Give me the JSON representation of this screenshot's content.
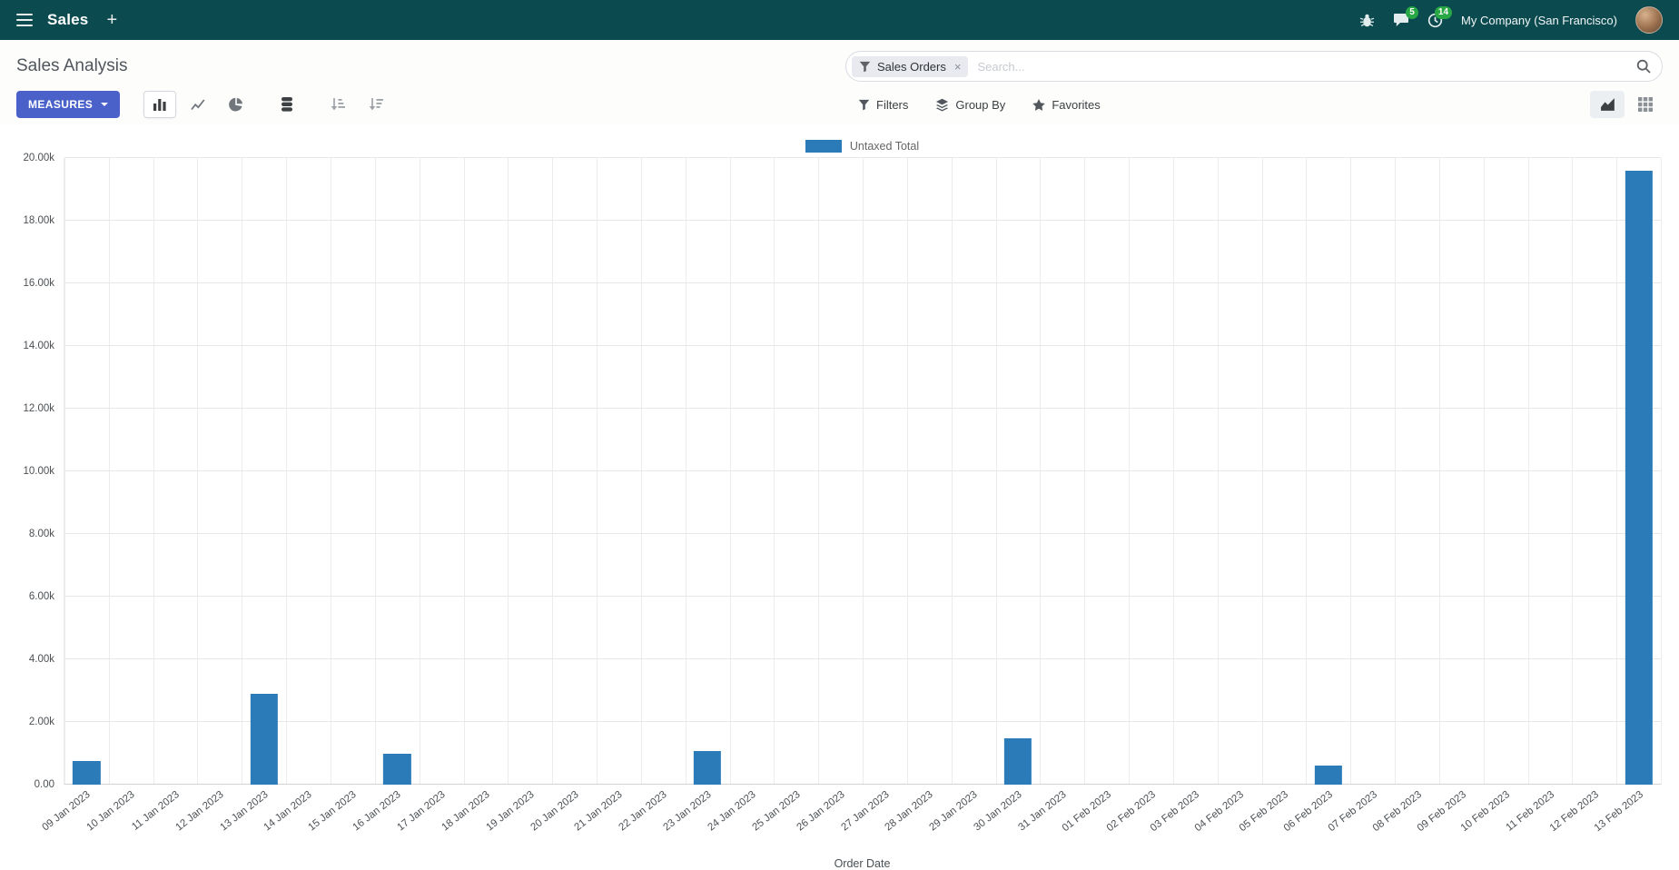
{
  "colors": {
    "navbar_bg": "#0b4b50",
    "accent_button": "#4a61c9",
    "badge_green": "#28a745",
    "bar_blue": "#2b7bb9"
  },
  "navbar": {
    "app_name": "Sales",
    "plus_label": "+",
    "message_badge": "5",
    "activity_badge": "14",
    "company_name": "My Company (San Francisco)"
  },
  "control_panel": {
    "title": "Sales Analysis",
    "search": {
      "facet": "Sales Orders",
      "facet_remove": "×",
      "placeholder": "Search..."
    },
    "measures_label": "MEASURES",
    "filters_label": "Filters",
    "group_by_label": "Group By",
    "favorites_label": "Favorites"
  },
  "chart_data": {
    "type": "bar",
    "series_name": "Untaxed Total",
    "legend": [
      "Untaxed Total"
    ],
    "legend_position": "top",
    "xlabel": "Order Date",
    "ylabel": "",
    "ylim": [
      0,
      20000
    ],
    "ytick_step": 2000,
    "ytick_labels": [
      "0.00",
      "2.00k",
      "4.00k",
      "6.00k",
      "8.00k",
      "10.00k",
      "12.00k",
      "14.00k",
      "16.00k",
      "18.00k",
      "20.00k"
    ],
    "grid": true,
    "bar_color": "#2b7bb9",
    "categories": [
      "09 Jan 2023",
      "10 Jan 2023",
      "11 Jan 2023",
      "12 Jan 2023",
      "13 Jan 2023",
      "14 Jan 2023",
      "15 Jan 2023",
      "16 Jan 2023",
      "17 Jan 2023",
      "18 Jan 2023",
      "19 Jan 2023",
      "20 Jan 2023",
      "21 Jan 2023",
      "22 Jan 2023",
      "23 Jan 2023",
      "24 Jan 2023",
      "25 Jan 2023",
      "26 Jan 2023",
      "27 Jan 2023",
      "28 Jan 2023",
      "29 Jan 2023",
      "30 Jan 2023",
      "31 Jan 2023",
      "01 Feb 2023",
      "02 Feb 2023",
      "03 Feb 2023",
      "04 Feb 2023",
      "05 Feb 2023",
      "06 Feb 2023",
      "07 Feb 2023",
      "08 Feb 2023",
      "09 Feb 2023",
      "10 Feb 2023",
      "11 Feb 2023",
      "12 Feb 2023",
      "13 Feb 2023"
    ],
    "values": [
      750,
      0,
      0,
      0,
      2900,
      0,
      0,
      980,
      0,
      0,
      0,
      0,
      0,
      0,
      1080,
      0,
      0,
      0,
      0,
      0,
      0,
      1490,
      0,
      0,
      0,
      0,
      0,
      0,
      620,
      0,
      0,
      0,
      0,
      0,
      0,
      19600
    ]
  }
}
